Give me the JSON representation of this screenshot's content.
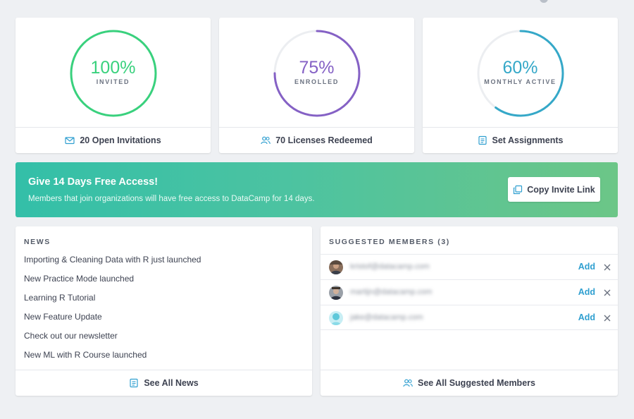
{
  "colors": {
    "invited": "#39d17d",
    "enrolled": "#8561c5",
    "active": "#35a8c8",
    "track": "#eceef1",
    "link": "#2f9fd0",
    "banner_start": "#33bfa8",
    "banner_end": "#6cc687"
  },
  "stats": [
    {
      "percent": "100%",
      "value": 1.0,
      "label": "INVITED",
      "footer": "20 Open Invitations",
      "icon": "envelope-icon"
    },
    {
      "percent": "75%",
      "value": 0.75,
      "label": "ENROLLED",
      "footer": "70 Licenses Redeemed",
      "icon": "users-icon"
    },
    {
      "percent": "60%",
      "value": 0.6,
      "label": "MONTHLY ACTIVE",
      "footer": "Set Assignments",
      "icon": "document-icon"
    }
  ],
  "banner": {
    "title": "Give 14 Days Free Access!",
    "subtitle": "Members that join organizations will have free access to DataCamp for 14 days.",
    "button": "Copy Invite Link",
    "button_icon": "copy-icon"
  },
  "news": {
    "title": "NEWS",
    "items": [
      "Importing & Cleaning Data with R just launched",
      "New Practice Mode launched",
      "Learning R Tutorial",
      "New Feature Update",
      "Check out our newsletter",
      "New ML with R Course launched"
    ],
    "footer": "See All News",
    "footer_icon": "document-icon"
  },
  "suggested": {
    "title": "SUGGESTED MEMBERS (3)",
    "members": [
      {
        "email": "kristof@datacamp.com",
        "add": "Add"
      },
      {
        "email": "martijn@datacamp.com",
        "add": "Add"
      },
      {
        "email": "jake@datacamp.com",
        "add": "Add"
      }
    ],
    "footer": "See All Suggested Members",
    "footer_icon": "users-icon"
  }
}
